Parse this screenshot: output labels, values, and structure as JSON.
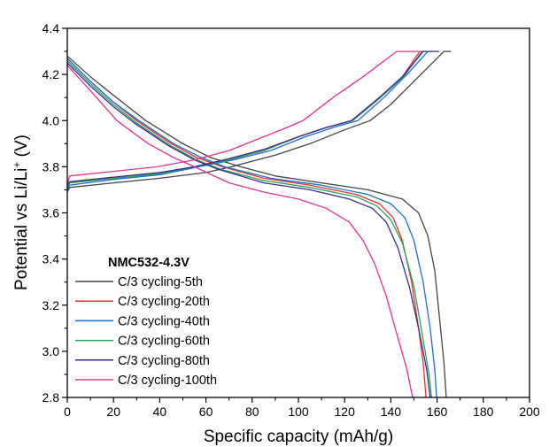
{
  "chart_data": {
    "type": "line",
    "title": "",
    "xlabel": "Specific capacity (mAh/g)",
    "ylabel_main": "Potential vs Li/Li",
    "ylabel_sup": "+",
    "ylabel_unit": " (V)",
    "xlim": [
      0,
      200
    ],
    "ylim": [
      2.8,
      4.4
    ],
    "x_ticks": [
      "0",
      "20",
      "40",
      "60",
      "80",
      "100",
      "120",
      "140",
      "160",
      "180",
      "200"
    ],
    "y_ticks": [
      "2.8",
      "3.0",
      "3.2",
      "3.4",
      "3.6",
      "3.8",
      "4.0",
      "4.2",
      "4.4"
    ],
    "grid": false,
    "legend": {
      "title": "NMC532-4.3V",
      "placement": "bottom-left"
    },
    "series": [
      {
        "name": "C/3 cycling-5th",
        "color": "#444444",
        "discharge": [
          [
            0,
            4.28
          ],
          [
            10,
            4.19
          ],
          [
            20,
            4.11
          ],
          [
            34,
            4.0
          ],
          [
            50,
            3.9
          ],
          [
            62,
            3.84
          ],
          [
            75,
            3.8
          ],
          [
            90,
            3.76
          ],
          [
            110,
            3.73
          ],
          [
            130,
            3.7
          ],
          [
            145,
            3.66
          ],
          [
            152,
            3.6
          ],
          [
            156,
            3.5
          ],
          [
            159,
            3.35
          ],
          [
            161,
            3.15
          ],
          [
            163,
            2.95
          ],
          [
            164,
            2.8
          ]
        ],
        "charge": [
          [
            0,
            3.69
          ],
          [
            1,
            3.71
          ],
          [
            20,
            3.73
          ],
          [
            40,
            3.75
          ],
          [
            60,
            3.775
          ],
          [
            71,
            3.8
          ],
          [
            90,
            3.85
          ],
          [
            105,
            3.9
          ],
          [
            120,
            3.96
          ],
          [
            131,
            4.0
          ],
          [
            140,
            4.07
          ],
          [
            150,
            4.17
          ],
          [
            163,
            4.3
          ],
          [
            166,
            4.3
          ]
        ]
      },
      {
        "name": "C/3 cycling-20th",
        "color": "#e8322e",
        "discharge": [
          [
            0,
            4.27
          ],
          [
            10,
            4.17
          ],
          [
            20,
            4.08
          ],
          [
            30,
            4.0
          ],
          [
            45,
            3.9
          ],
          [
            56,
            3.84
          ],
          [
            67,
            3.8
          ],
          [
            85,
            3.75
          ],
          [
            105,
            3.72
          ],
          [
            125,
            3.68
          ],
          [
            135,
            3.64
          ],
          [
            141,
            3.58
          ],
          [
            145,
            3.48
          ],
          [
            149,
            3.3
          ],
          [
            152,
            3.1
          ],
          [
            154,
            2.95
          ],
          [
            155.2,
            2.8
          ]
        ],
        "charge": [
          [
            0,
            3.71
          ],
          [
            1,
            3.73
          ],
          [
            20,
            3.75
          ],
          [
            40,
            3.77
          ],
          [
            55,
            3.8
          ],
          [
            70,
            3.83
          ],
          [
            85,
            3.87
          ],
          [
            100,
            3.93
          ],
          [
            112,
            3.97
          ],
          [
            123,
            4.0
          ],
          [
            135,
            4.1
          ],
          [
            145,
            4.19
          ],
          [
            152.5,
            4.3
          ],
          [
            154,
            4.3
          ]
        ]
      },
      {
        "name": "C/3 cycling-40th",
        "color": "#1f6fd6",
        "discharge": [
          [
            0,
            4.27
          ],
          [
            10,
            4.17
          ],
          [
            20,
            4.08
          ],
          [
            31,
            4.0
          ],
          [
            46,
            3.9
          ],
          [
            58,
            3.84
          ],
          [
            68,
            3.8
          ],
          [
            88,
            3.75
          ],
          [
            110,
            3.72
          ],
          [
            130,
            3.68
          ],
          [
            140,
            3.64
          ],
          [
            146,
            3.58
          ],
          [
            150,
            3.48
          ],
          [
            154,
            3.3
          ],
          [
            157,
            3.1
          ],
          [
            159,
            2.92
          ],
          [
            159.8,
            2.8
          ]
        ],
        "charge": [
          [
            0,
            3.7
          ],
          [
            1,
            3.72
          ],
          [
            20,
            3.745
          ],
          [
            40,
            3.765
          ],
          [
            57,
            3.8
          ],
          [
            72,
            3.83
          ],
          [
            88,
            3.87
          ],
          [
            103,
            3.93
          ],
          [
            115,
            3.97
          ],
          [
            125.7,
            4.0
          ],
          [
            137,
            4.1
          ],
          [
            147,
            4.2
          ],
          [
            156,
            4.3
          ],
          [
            158,
            4.3
          ]
        ]
      },
      {
        "name": "C/3 cycling-60th",
        "color": "#2aa05a",
        "discharge": [
          [
            0,
            4.26
          ],
          [
            10,
            4.16
          ],
          [
            20,
            4.07
          ],
          [
            30,
            3.99
          ],
          [
            45,
            3.89
          ],
          [
            56,
            3.83
          ],
          [
            66,
            3.79
          ],
          [
            85,
            3.74
          ],
          [
            105,
            3.71
          ],
          [
            125,
            3.67
          ],
          [
            134,
            3.63
          ],
          [
            140,
            3.57
          ],
          [
            145,
            3.47
          ],
          [
            150,
            3.28
          ],
          [
            154,
            3.05
          ],
          [
            156.5,
            2.9
          ],
          [
            157.6,
            2.8
          ]
        ],
        "charge": [
          [
            0,
            3.71
          ],
          [
            1,
            3.73
          ],
          [
            20,
            3.75
          ],
          [
            40,
            3.77
          ],
          [
            55,
            3.8
          ],
          [
            70,
            3.83
          ],
          [
            85,
            3.87
          ],
          [
            100,
            3.93
          ],
          [
            112,
            3.97
          ],
          [
            123.5,
            4.0
          ],
          [
            135.5,
            4.1
          ],
          [
            145.5,
            4.19
          ],
          [
            153.5,
            4.3
          ],
          [
            155,
            4.3
          ]
        ]
      },
      {
        "name": "C/3 cycling-80th",
        "color": "#3b2a8c",
        "discharge": [
          [
            0,
            4.25
          ],
          [
            10,
            4.15
          ],
          [
            20,
            4.06
          ],
          [
            29,
            3.99
          ],
          [
            44,
            3.89
          ],
          [
            55,
            3.83
          ],
          [
            65,
            3.79
          ],
          [
            85,
            3.73
          ],
          [
            105,
            3.7
          ],
          [
            122,
            3.66
          ],
          [
            132,
            3.62
          ],
          [
            138,
            3.56
          ],
          [
            143,
            3.45
          ],
          [
            148,
            3.28
          ],
          [
            152,
            3.1
          ],
          [
            155.5,
            2.92
          ],
          [
            157,
            2.8
          ]
        ],
        "charge": [
          [
            0,
            3.72
          ],
          [
            1,
            3.735
          ],
          [
            20,
            3.755
          ],
          [
            40,
            3.775
          ],
          [
            55,
            3.8
          ],
          [
            70,
            3.835
          ],
          [
            85,
            3.875
          ],
          [
            100,
            3.93
          ],
          [
            112,
            3.97
          ],
          [
            123,
            4.0
          ],
          [
            135,
            4.1
          ],
          [
            145,
            4.19
          ],
          [
            154,
            4.3
          ],
          [
            161,
            4.3
          ]
        ]
      },
      {
        "name": "C/3 cycling-100th",
        "color": "#e0348f",
        "discharge": [
          [
            0,
            4.24
          ],
          [
            10,
            4.13
          ],
          [
            21.5,
            4.0
          ],
          [
            35,
            3.9
          ],
          [
            46,
            3.84
          ],
          [
            55,
            3.8
          ],
          [
            70,
            3.73
          ],
          [
            85,
            3.69
          ],
          [
            100,
            3.66
          ],
          [
            112,
            3.62
          ],
          [
            122,
            3.56
          ],
          [
            128,
            3.48
          ],
          [
            133,
            3.38
          ],
          [
            138,
            3.24
          ],
          [
            143,
            3.06
          ],
          [
            147,
            2.92
          ],
          [
            149.4,
            2.8
          ]
        ],
        "charge": [
          [
            0,
            3.72
          ],
          [
            1,
            3.76
          ],
          [
            20,
            3.78
          ],
          [
            39,
            3.8
          ],
          [
            55,
            3.83
          ],
          [
            70,
            3.87
          ],
          [
            85,
            3.93
          ],
          [
            95,
            3.97
          ],
          [
            102,
            4.0
          ],
          [
            115,
            4.1
          ],
          [
            128,
            4.19
          ],
          [
            142.5,
            4.3
          ],
          [
            152,
            4.3
          ]
        ]
      }
    ]
  }
}
